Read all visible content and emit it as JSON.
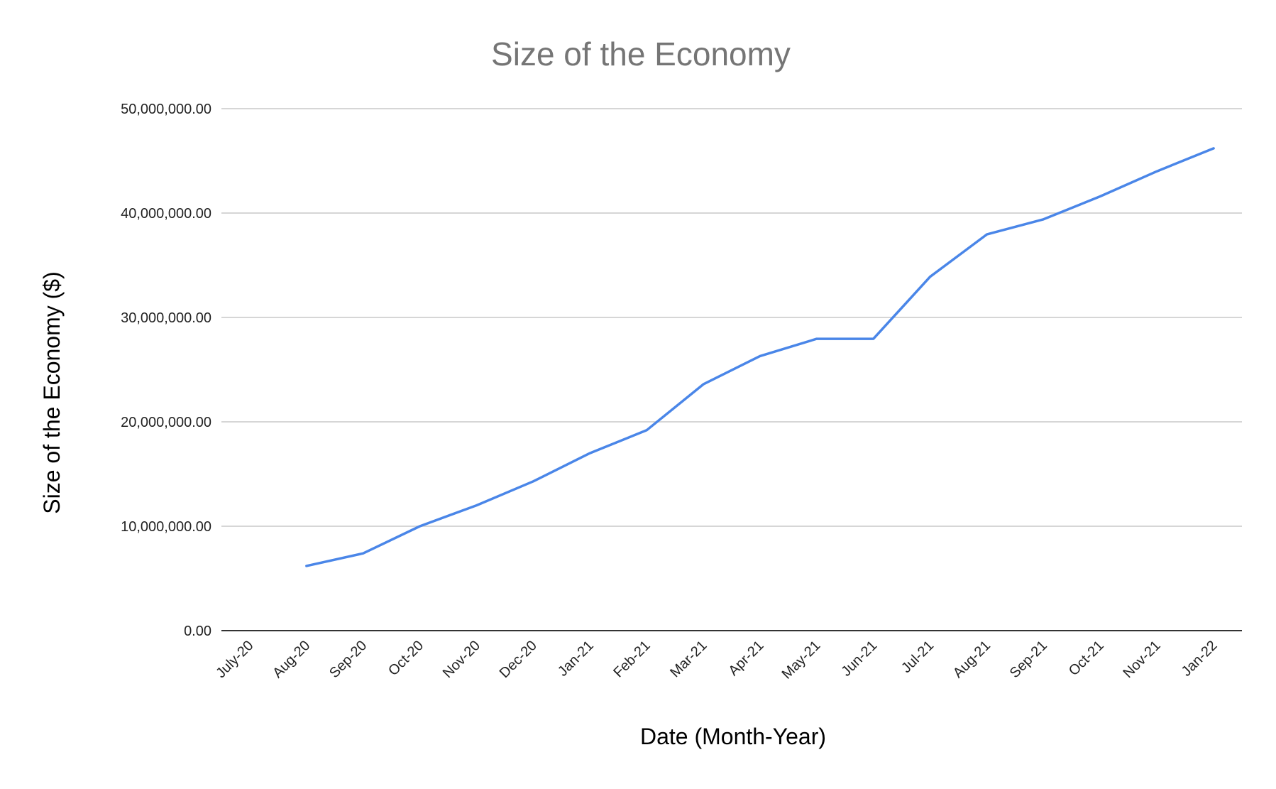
{
  "chart_data": {
    "type": "line",
    "title": "Size of the Economy",
    "xlabel": "Date (Month-Year)",
    "ylabel": "Size of the Economy ($)",
    "categories": [
      "July-20",
      "Aug-20",
      "Sep-20",
      "Oct-20",
      "Nov-20",
      "Dec-20",
      "Jan-21",
      "Feb-21",
      "Mar-21",
      "Apr-21",
      "May-21",
      "Jun-21",
      "Jul-21",
      "Aug-21",
      "Sep-21",
      "Oct-21",
      "Nov-21",
      "Jan-22"
    ],
    "series": [
      {
        "values": [
          null,
          6200000,
          7400000,
          10000000,
          12000000,
          14300000,
          17000000,
          19200000,
          23600000,
          26300000,
          27950000,
          27950000,
          33900000,
          37950000,
          39400000,
          41600000,
          44000000,
          46200000
        ]
      }
    ],
    "ylim": [
      0,
      50000000
    ],
    "yticks": [
      0,
      10000000,
      20000000,
      30000000,
      40000000,
      50000000
    ],
    "ytick_labels": [
      "0.00",
      "10,000,000.00",
      "20,000,000.00",
      "30,000,000.00",
      "40,000,000.00",
      "50,000,000.00"
    ],
    "grid": true,
    "line_color": "#4a86e8"
  }
}
